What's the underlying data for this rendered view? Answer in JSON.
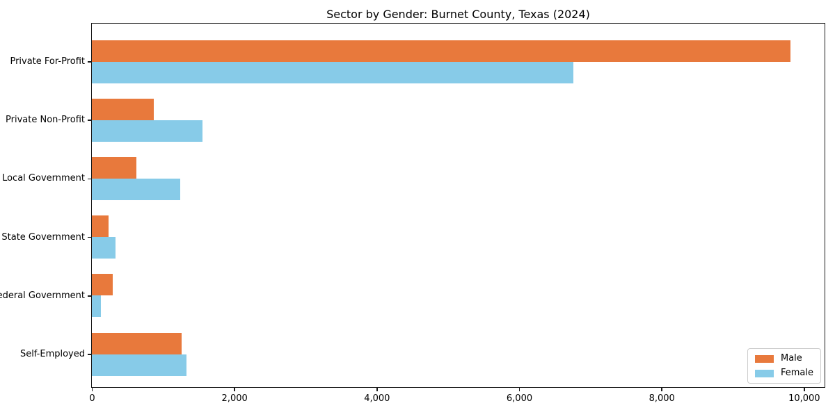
{
  "chart_data": {
    "type": "bar",
    "orientation": "horizontal",
    "title": "Sector by Gender: Burnet County, Texas (2024)",
    "xlabel": "",
    "ylabel": "",
    "categories": [
      "Private For-Profit",
      "Private Non-Profit",
      "Local Government",
      "State Government",
      "Federal Government",
      "Self-Employed"
    ],
    "series": [
      {
        "name": "Male",
        "color": "#e8793c",
        "values": [
          9810,
          870,
          630,
          230,
          290,
          1260
        ]
      },
      {
        "name": "Female",
        "color": "#87cbe8",
        "values": [
          6760,
          1550,
          1245,
          330,
          130,
          1325
        ]
      }
    ],
    "xlim": [
      0,
      10280
    ],
    "xticks": [
      {
        "value": 0,
        "label": "0"
      },
      {
        "value": 2000,
        "label": "2,000"
      },
      {
        "value": 4000,
        "label": "4,000"
      },
      {
        "value": 6000,
        "label": "6,000"
      },
      {
        "value": 8000,
        "label": "8,000"
      },
      {
        "value": 10000,
        "label": "10,000"
      }
    ],
    "grid": false,
    "legend_position": "lower right",
    "background_color": "#ffffff",
    "spine_color": "#1a1a1a"
  }
}
